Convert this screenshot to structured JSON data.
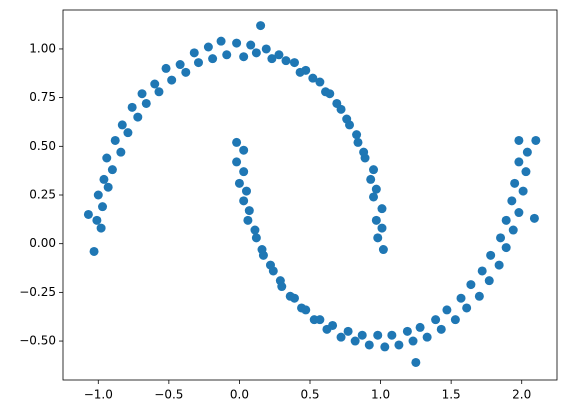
{
  "chart_data": {
    "type": "scatter",
    "color": "#1f77b4",
    "x": [
      1.02,
      0.97,
      1.01,
      0.93,
      0.95,
      0.84,
      0.83,
      0.72,
      0.69,
      0.57,
      0.52,
      0.39,
      0.33,
      0.19,
      0.12,
      -0.02,
      -0.09,
      -0.22,
      -0.29,
      -0.42,
      -0.48,
      -0.6,
      -0.66,
      -0.76,
      -0.79,
      -0.88,
      -0.9,
      -0.96,
      -0.97,
      -1.01,
      -1.03,
      0.98,
      1.01,
      0.95,
      0.97,
      0.89,
      0.88,
      0.78,
      0.76,
      0.64,
      0.61,
      0.47,
      0.43,
      0.28,
      0.23,
      0.08,
      0.03,
      -0.13,
      -0.19,
      -0.32,
      -0.38,
      -0.52,
      -0.57,
      -0.69,
      -0.72,
      -0.83,
      -0.84,
      -0.94,
      -0.93,
      -1.0,
      -0.98,
      -1.07,
      0.15,
      0.03,
      -0.02,
      0.05,
      0.03,
      0.11,
      0.12,
      0.22,
      0.24,
      0.36,
      0.39,
      0.53,
      0.57,
      0.72,
      0.77,
      0.92,
      0.98,
      1.13,
      1.19,
      1.33,
      1.39,
      1.53,
      1.57,
      1.7,
      1.72,
      1.84,
      1.85,
      1.94,
      1.93,
      2.01,
      1.98,
      2.04,
      -0.02,
      0.03,
      0.0,
      0.07,
      0.06,
      0.16,
      0.17,
      0.29,
      0.3,
      0.44,
      0.47,
      0.62,
      0.66,
      0.82,
      0.87,
      1.03,
      1.08,
      1.23,
      1.28,
      1.43,
      1.47,
      1.61,
      1.64,
      1.77,
      1.78,
      1.89,
      1.89,
      1.98,
      1.95,
      2.03,
      1.98,
      1.25,
      2.1,
      2.09
    ],
    "y": [
      -0.03,
      0.12,
      0.18,
      0.33,
      0.38,
      0.52,
      0.56,
      0.69,
      0.72,
      0.83,
      0.85,
      0.93,
      0.94,
      1.0,
      0.98,
      1.03,
      0.97,
      1.01,
      0.93,
      0.92,
      0.84,
      0.82,
      0.72,
      0.7,
      0.57,
      0.53,
      0.38,
      0.33,
      0.19,
      0.12,
      -0.04,
      0.03,
      0.08,
      0.24,
      0.28,
      0.44,
      0.47,
      0.61,
      0.64,
      0.77,
      0.78,
      0.89,
      0.88,
      0.97,
      0.95,
      1.02,
      0.96,
      1.04,
      0.95,
      0.98,
      0.88,
      0.9,
      0.78,
      0.77,
      0.65,
      0.61,
      0.47,
      0.44,
      0.29,
      0.25,
      0.08,
      0.15,
      1.12,
      0.48,
      0.42,
      0.27,
      0.22,
      0.07,
      0.03,
      -0.11,
      -0.14,
      -0.27,
      -0.28,
      -0.39,
      -0.39,
      -0.48,
      -0.45,
      -0.52,
      -0.47,
      -0.52,
      -0.45,
      -0.48,
      -0.39,
      -0.39,
      -0.28,
      -0.27,
      -0.14,
      -0.11,
      0.03,
      0.07,
      0.22,
      0.27,
      0.42,
      0.47,
      0.52,
      0.37,
      0.31,
      0.17,
      0.12,
      -0.03,
      -0.06,
      -0.19,
      -0.22,
      -0.33,
      -0.34,
      -0.44,
      -0.42,
      -0.5,
      -0.47,
      -0.53,
      -0.47,
      -0.5,
      -0.43,
      -0.44,
      -0.34,
      -0.33,
      -0.21,
      -0.19,
      -0.06,
      -0.02,
      0.12,
      0.16,
      0.31,
      0.37,
      0.53,
      -0.61,
      0.53,
      0.13
    ],
    "xlim": [
      -1.25,
      2.25
    ],
    "xticks": [
      {
        "value": -1.0,
        "label": "−1.0"
      },
      {
        "value": -0.5,
        "label": "−0.5"
      },
      {
        "value": 0.0,
        "label": "0.0"
      },
      {
        "value": 0.5,
        "label": "0.5"
      },
      {
        "value": 1.0,
        "label": "1.0"
      },
      {
        "value": 1.5,
        "label": "1.5"
      },
      {
        "value": 2.0,
        "label": "2.0"
      }
    ],
    "ylim": [
      -0.7,
      1.2
    ],
    "yticks": [
      {
        "value": -0.5,
        "label": "−0.50"
      },
      {
        "value": -0.25,
        "label": "−0.25"
      },
      {
        "value": 0.0,
        "label": "0.00"
      },
      {
        "value": 0.25,
        "label": "0.25"
      },
      {
        "value": 0.5,
        "label": "0.50"
      },
      {
        "value": 0.75,
        "label": "0.75"
      },
      {
        "value": 1.0,
        "label": "1.00"
      }
    ]
  }
}
